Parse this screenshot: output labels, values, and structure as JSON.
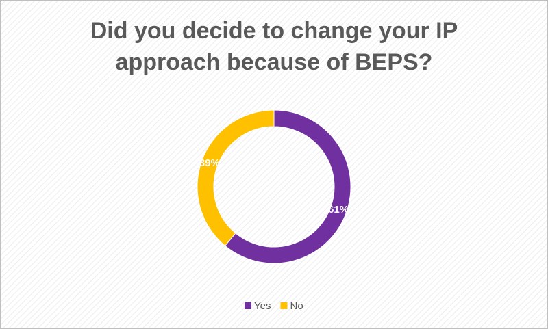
{
  "chart_data": {
    "type": "pie",
    "title": "Did you decide to change your IP approach because of BEPS?",
    "categories": [
      "Yes",
      "No"
    ],
    "values": [
      61,
      39
    ],
    "value_labels": [
      "61%",
      "39%"
    ],
    "colors": [
      "#7030a0",
      "#ffc000"
    ],
    "donut": true,
    "legend": "bottom"
  }
}
